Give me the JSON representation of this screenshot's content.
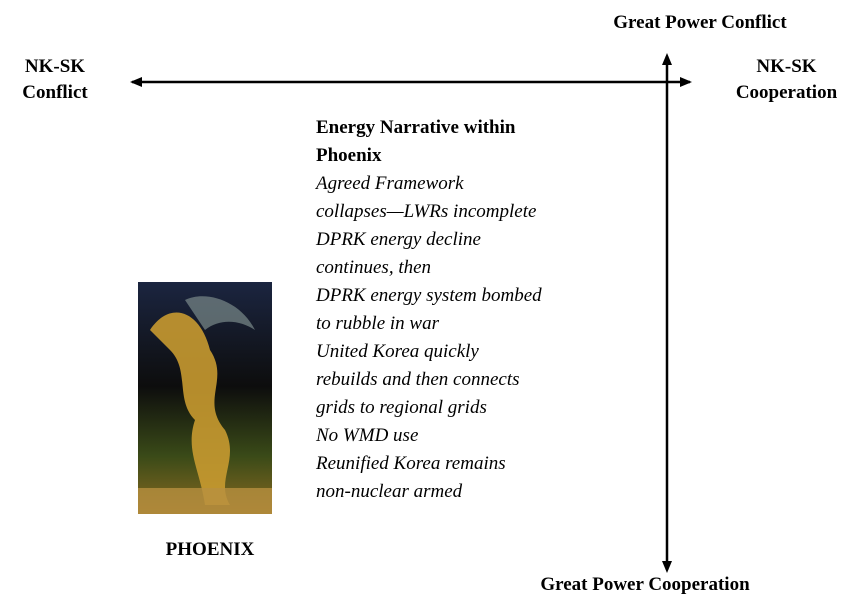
{
  "axes": {
    "top": "Great Power Conflict",
    "bottom": "Great Power Cooperation",
    "left": [
      "NK-SK",
      "Conflict"
    ],
    "right": [
      "NK-SK",
      "Cooperation"
    ]
  },
  "narrative": {
    "title_lines": [
      "Energy Narrative within",
      "Phoenix"
    ],
    "lines": [
      "Agreed Framework",
      "collapses—LWRs incomplete",
      "DPRK energy decline",
      "continues, then",
      "DPRK energy system bombed",
      "to rubble in war",
      "United Korea quickly",
      "rebuilds and then connects",
      "grids to regional grids",
      "No WMD use",
      "Reunified Korea remains",
      "non-nuclear armed"
    ]
  },
  "image_caption": "PHOENIX"
}
